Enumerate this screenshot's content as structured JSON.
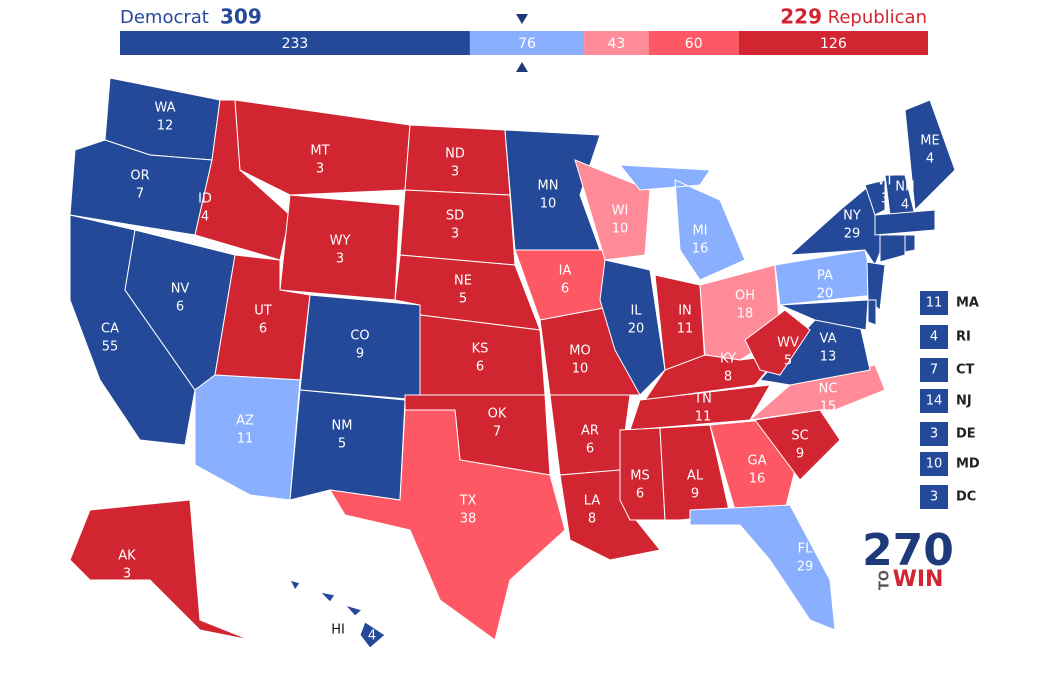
{
  "header": {
    "dem_label": "Democrat",
    "dem_total": "309",
    "rep_total": "229",
    "rep_label": "Republican"
  },
  "bar": {
    "segments": [
      {
        "value": 233,
        "color": "#244999"
      },
      {
        "value": 76,
        "color": "#8aafff"
      },
      {
        "value": 43,
        "color": "#ff8b98"
      },
      {
        "value": 60,
        "color": "#ff5865"
      },
      {
        "value": 126,
        "color": "#d22532"
      }
    ]
  },
  "states": [
    {
      "abbr": "WA",
      "ev": "12",
      "color": "#244999"
    },
    {
      "abbr": "OR",
      "ev": "7",
      "color": "#244999"
    },
    {
      "abbr": "CA",
      "ev": "55",
      "color": "#244999"
    },
    {
      "abbr": "NV",
      "ev": "6",
      "color": "#244999"
    },
    {
      "abbr": "ID",
      "ev": "4",
      "color": "#d22532"
    },
    {
      "abbr": "MT",
      "ev": "3",
      "color": "#d22532"
    },
    {
      "abbr": "WY",
      "ev": "3",
      "color": "#d22532"
    },
    {
      "abbr": "UT",
      "ev": "6",
      "color": "#d22532"
    },
    {
      "abbr": "AZ",
      "ev": "11",
      "color": "#8aafff"
    },
    {
      "abbr": "CO",
      "ev": "9",
      "color": "#244999"
    },
    {
      "abbr": "NM",
      "ev": "5",
      "color": "#244999"
    },
    {
      "abbr": "ND",
      "ev": "3",
      "color": "#d22532"
    },
    {
      "abbr": "SD",
      "ev": "3",
      "color": "#d22532"
    },
    {
      "abbr": "NE",
      "ev": "5",
      "color": "#d22532"
    },
    {
      "abbr": "KS",
      "ev": "6",
      "color": "#d22532"
    },
    {
      "abbr": "OK",
      "ev": "7",
      "color": "#d22532"
    },
    {
      "abbr": "TX",
      "ev": "38",
      "color": "#ff5865"
    },
    {
      "abbr": "MN",
      "ev": "10",
      "color": "#244999"
    },
    {
      "abbr": "IA",
      "ev": "6",
      "color": "#ff5865"
    },
    {
      "abbr": "MO",
      "ev": "10",
      "color": "#d22532"
    },
    {
      "abbr": "AR",
      "ev": "6",
      "color": "#d22532"
    },
    {
      "abbr": "LA",
      "ev": "8",
      "color": "#d22532"
    },
    {
      "abbr": "WI",
      "ev": "10",
      "color": "#ff8b98"
    },
    {
      "abbr": "IL",
      "ev": "20",
      "color": "#244999"
    },
    {
      "abbr": "MI",
      "ev": "16",
      "color": "#8aafff"
    },
    {
      "abbr": "IN",
      "ev": "11",
      "color": "#d22532"
    },
    {
      "abbr": "OH",
      "ev": "18",
      "color": "#ff8b98"
    },
    {
      "abbr": "KY",
      "ev": "8",
      "color": "#d22532"
    },
    {
      "abbr": "TN",
      "ev": "11",
      "color": "#d22532"
    },
    {
      "abbr": "MS",
      "ev": "6",
      "color": "#d22532"
    },
    {
      "abbr": "AL",
      "ev": "9",
      "color": "#d22532"
    },
    {
      "abbr": "GA",
      "ev": "16",
      "color": "#ff5865"
    },
    {
      "abbr": "FL",
      "ev": "29",
      "color": "#8aafff"
    },
    {
      "abbr": "SC",
      "ev": "9",
      "color": "#d22532"
    },
    {
      "abbr": "NC",
      "ev": "15",
      "color": "#ff8b98"
    },
    {
      "abbr": "VA",
      "ev": "13",
      "color": "#244999"
    },
    {
      "abbr": "WV",
      "ev": "5",
      "color": "#d22532"
    },
    {
      "abbr": "PA",
      "ev": "20",
      "color": "#8aafff"
    },
    {
      "abbr": "NY",
      "ev": "29",
      "color": "#244999"
    },
    {
      "abbr": "VT",
      "ev": "3",
      "color": "#244999"
    },
    {
      "abbr": "NH",
      "ev": "4",
      "color": "#244999"
    },
    {
      "abbr": "ME",
      "ev": "4",
      "color": "#244999"
    },
    {
      "abbr": "AK",
      "ev": "3",
      "color": "#d22532"
    },
    {
      "abbr": "HI",
      "ev": "4",
      "color": "#244999"
    },
    {
      "abbr": "MA",
      "ev": "11",
      "color": "#244999"
    },
    {
      "abbr": "RI",
      "ev": "4",
      "color": "#244999"
    },
    {
      "abbr": "CT",
      "ev": "7",
      "color": "#244999"
    },
    {
      "abbr": "NJ",
      "ev": "14",
      "color": "#244999"
    },
    {
      "abbr": "DE",
      "ev": "3",
      "color": "#244999"
    },
    {
      "abbr": "MD",
      "ev": "10",
      "color": "#244999"
    },
    {
      "abbr": "DC",
      "ev": "3",
      "color": "#244999"
    }
  ],
  "logo": {
    "number": "270",
    "to": "TO",
    "win": "WIN"
  }
}
